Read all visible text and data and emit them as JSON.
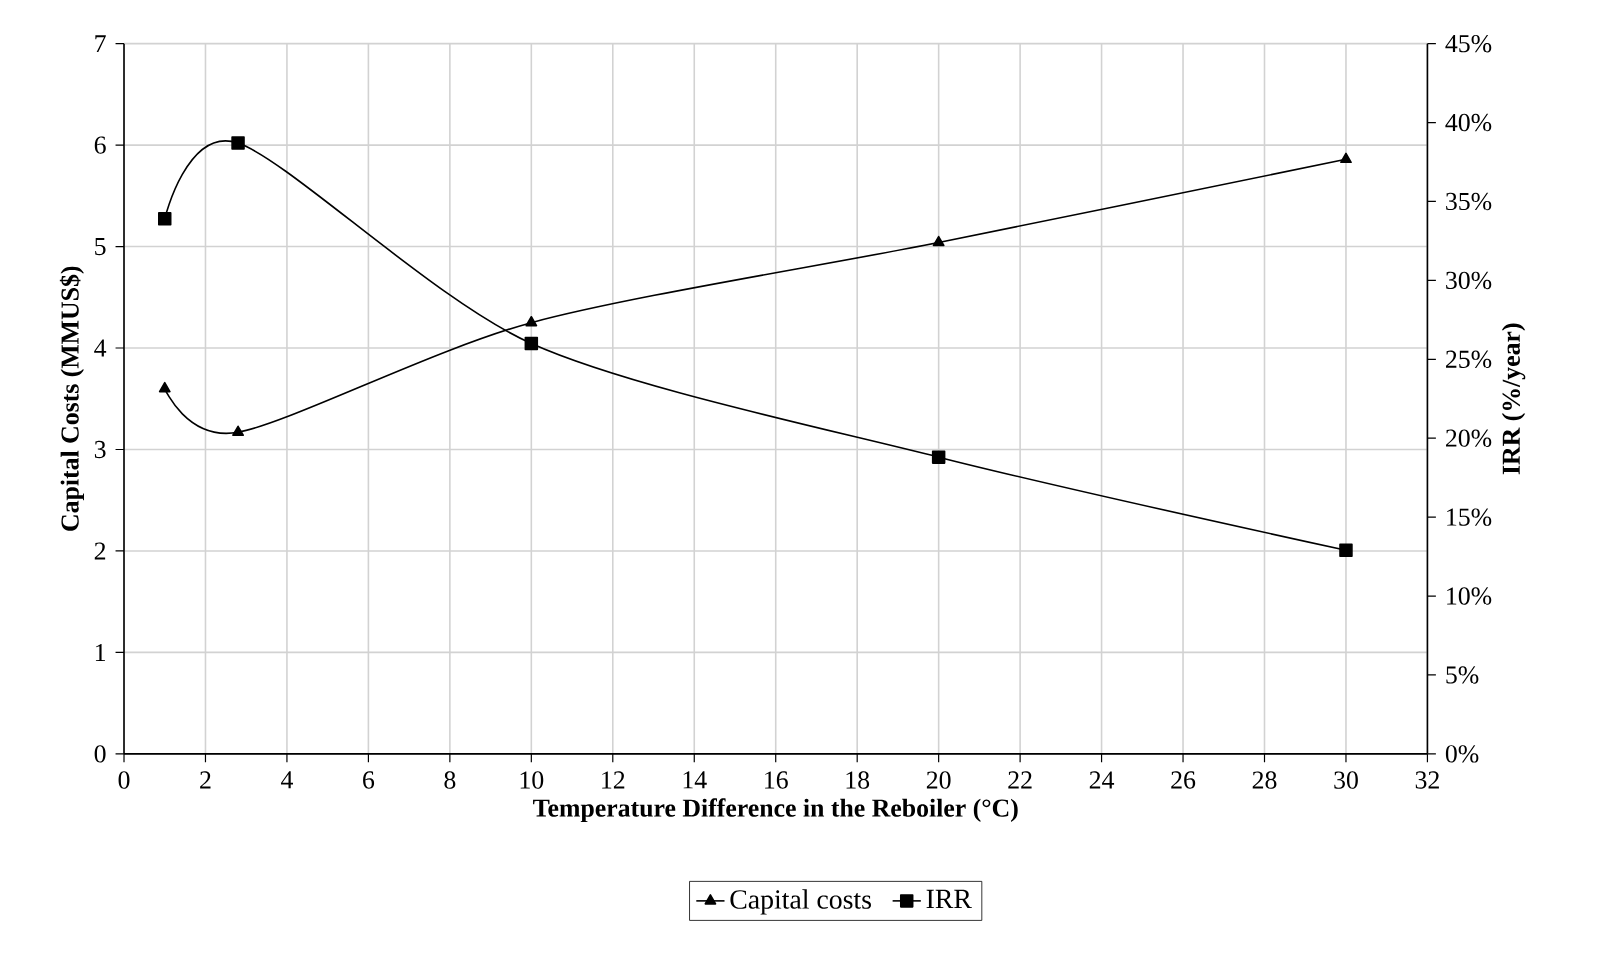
{
  "chart_data": {
    "type": "line",
    "xlabel": "Temperature Difference in the Reboiler (°C)",
    "ylabel": "Capital Costs (MMUS$)",
    "y2label": "IRR (%/year)",
    "x": [
      1,
      2.8,
      10,
      20,
      30
    ],
    "series": [
      {
        "name": "Capital costs",
        "color": "#000000",
        "marker": "triangle",
        "values": [
          3.6,
          3.17,
          4.25,
          5.04,
          5.86
        ]
      },
      {
        "name": "IRR",
        "color": "#000000",
        "marker": "square",
        "axis": "y2",
        "values": [
          33.9,
          38.7,
          26.0,
          18.8,
          12.9
        ]
      }
    ],
    "xlim": [
      0,
      32
    ],
    "xticks": [
      0,
      2,
      4,
      6,
      8,
      10,
      12,
      14,
      16,
      18,
      20,
      22,
      24,
      26,
      28,
      30,
      32
    ],
    "ylim": [
      0,
      7
    ],
    "yticks": [
      0,
      1,
      2,
      3,
      4,
      5,
      6,
      7
    ],
    "y2lim": [
      0,
      45
    ],
    "y2ticks": [
      {
        "value": 0,
        "label": "0%"
      },
      {
        "value": 5,
        "label": "5%"
      },
      {
        "value": 10,
        "label": "10%"
      },
      {
        "value": 15,
        "label": "15%"
      },
      {
        "value": 20,
        "label": "20%"
      },
      {
        "value": 25,
        "label": "25%"
      },
      {
        "value": 30,
        "label": "30%"
      },
      {
        "value": 35,
        "label": "35%"
      },
      {
        "value": 40,
        "label": "40%"
      },
      {
        "value": 45,
        "label": "45%"
      }
    ],
    "grid": true,
    "legend": "bottom",
    "line_style": "solid"
  }
}
